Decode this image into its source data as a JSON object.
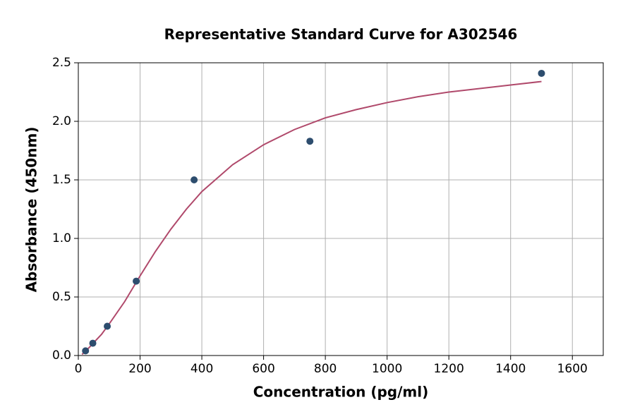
{
  "chart_data": {
    "type": "scatter",
    "title": "Representative Standard Curve for A302546",
    "x_label": "Concentration (pg/ml)",
    "y_label": "Absorbance (450nm)",
    "xlim": [
      0,
      1700
    ],
    "xticks": [
      0,
      200,
      400,
      600,
      800,
      1000,
      1200,
      1400,
      1600
    ],
    "ylim": [
      0,
      2.5
    ],
    "yticks": [
      {
        "value": 0,
        "label": "0.0"
      },
      0.5,
      {
        "value": 1,
        "label": "1.0"
      },
      1.5,
      {
        "value": 2,
        "label": "2.0"
      },
      2.5
    ],
    "grid": true,
    "series": [
      {
        "type": "line",
        "color": "#b0496b",
        "x": [
          12,
          25,
          50,
          75,
          100,
          150,
          200,
          250,
          300,
          350,
          400,
          500,
          600,
          700,
          800,
          900,
          1000,
          1100,
          1200,
          1300,
          1400,
          1500
        ],
        "values": [
          0.01,
          0.04,
          0.11,
          0.18,
          0.27,
          0.46,
          0.68,
          0.89,
          1.08,
          1.25,
          1.4,
          1.63,
          1.8,
          1.93,
          2.03,
          2.1,
          2.16,
          2.21,
          2.25,
          2.28,
          2.31,
          2.34
        ]
      },
      {
        "type": "scatter",
        "color": "#2d4d6e",
        "x": [
          23.4,
          46.9,
          93.75,
          187.5,
          375,
          750,
          1500
        ],
        "values": [
          0.04,
          0.105,
          0.25,
          0.635,
          1.5,
          1.83,
          2.41
        ]
      }
    ]
  }
}
